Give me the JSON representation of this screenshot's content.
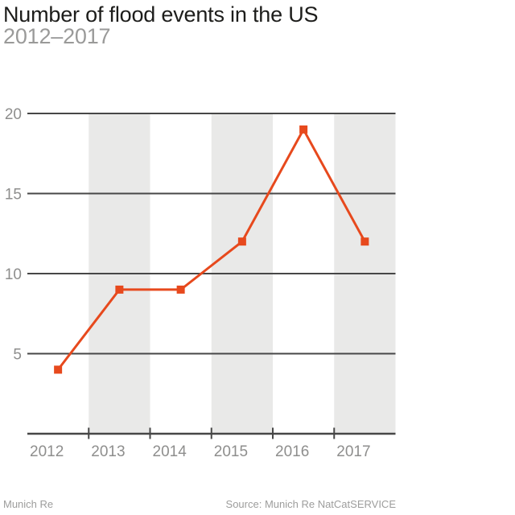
{
  "header": {
    "title": "Number of flood events in the US",
    "subtitle": "2012–2017"
  },
  "footer": {
    "brand": "Munich Re",
    "source": "Source: Munich Re NatCatSERVICE"
  },
  "colors": {
    "background": "#ffffff",
    "line": "#e7491d",
    "band": "#e9e9e8",
    "grid": "#474747",
    "title": "#1d1d1b",
    "subtitle": "#9a9a99",
    "axis_label": "#8e8e8d",
    "footer": "#9d9d9c"
  },
  "chart_data": {
    "type": "line",
    "title": "Number of flood events in the US",
    "subtitle": "2012–2017",
    "categories": [
      "2012",
      "2013",
      "2014",
      "2015",
      "2016",
      "2017"
    ],
    "values": [
      4,
      9,
      9,
      12,
      19,
      12
    ],
    "series_name": "Flood events",
    "xlabel": "",
    "ylabel": "",
    "ylim": [
      0,
      20
    ],
    "yticks": [
      5,
      10,
      15,
      20
    ],
    "grid": "horizontal",
    "legend": "none",
    "marker": "square",
    "shaded_band_indices": [
      1,
      3,
      5
    ]
  }
}
